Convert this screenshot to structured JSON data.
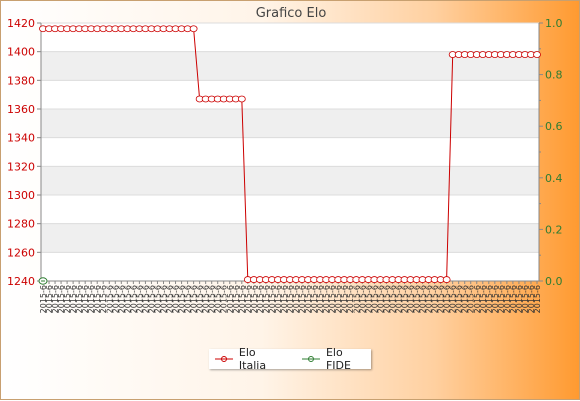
{
  "chart_data": {
    "type": "line",
    "title": "Grafico Elo",
    "y_left": {
      "min": 1240,
      "max": 1420,
      "ticks": [
        1240,
        1260,
        1280,
        1300,
        1320,
        1340,
        1360,
        1380,
        1400,
        1420
      ]
    },
    "y_right": {
      "min": 0.0,
      "max": 1.0,
      "ticks": [
        "0.0",
        "0.2",
        "0.4",
        "0.6",
        "0.8",
        "1.0"
      ]
    },
    "x_label_sample": "2015-6",
    "grid": true,
    "legend_position": "bottom",
    "colors": {
      "italia": "#cc0000",
      "fide": "#2e7d32"
    },
    "series": [
      {
        "name": "Elo Italia",
        "axis": "left",
        "segments": [
          {
            "count": 26,
            "value": 1416
          },
          {
            "count": 8,
            "value": 1367
          },
          {
            "count": 34,
            "value": 1241
          },
          {
            "count": 15,
            "value": 1398
          }
        ]
      },
      {
        "name": "Elo FIDE",
        "axis": "right",
        "segments": [
          {
            "count": 1,
            "value": 0
          }
        ]
      }
    ]
  }
}
